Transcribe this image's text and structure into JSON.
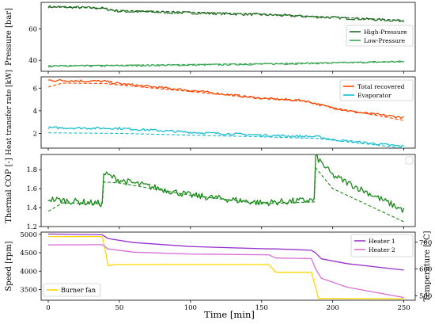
{
  "figure": {
    "xlabel": "Time [min]"
  },
  "chart_data": [
    {
      "type": "line",
      "ylabel": "Pressure [bar]",
      "xlim": [
        -5,
        258
      ],
      "ylim": [
        33,
        77
      ],
      "xticks": [
        0,
        50,
        100,
        150,
        200,
        250
      ],
      "yticks": [
        40,
        60
      ],
      "legend": "right",
      "series": [
        {
          "name": "High-Pressure",
          "color": "#1f6b1f",
          "style": "solid",
          "noise": 0.8,
          "points": [
            [
              0,
              74.2
            ],
            [
              20,
              73.8
            ],
            [
              38,
              73.3
            ],
            [
              42,
              72.5
            ],
            [
              50,
              71.3
            ],
            [
              100,
              70.3
            ],
            [
              150,
              69.2
            ],
            [
              200,
              67.3
            ],
            [
              250,
              65.2
            ]
          ]
        },
        {
          "name": "",
          "color": "#1f6b1f",
          "style": "dashed",
          "noise": 0,
          "points": [
            [
              0,
              74.0
            ],
            [
              38,
              73.3
            ],
            [
              48,
              72.0
            ],
            [
              100,
              70.8
            ],
            [
              150,
              69.5
            ],
            [
              200,
              67.6
            ],
            [
              250,
              65.6
            ]
          ]
        },
        {
          "name": "Low-Pressure",
          "color": "#3aa655",
          "style": "solid",
          "noise": 0.5,
          "points": [
            [
              0,
              36.2
            ],
            [
              50,
              36.6
            ],
            [
              100,
              37.0
            ],
            [
              150,
              37.6
            ],
            [
              200,
              38.3
            ],
            [
              250,
              39.3
            ]
          ]
        },
        {
          "name": "",
          "color": "#3aa655",
          "style": "dashed",
          "noise": 0,
          "points": [
            [
              0,
              36.6
            ],
            [
              50,
              36.9
            ],
            [
              100,
              37.4
            ],
            [
              150,
              37.9
            ],
            [
              200,
              38.5
            ],
            [
              250,
              38.9
            ]
          ]
        }
      ]
    },
    {
      "type": "line",
      "ylabel": "Heat transfer rate [kW]",
      "xlim": [
        -5,
        258
      ],
      "ylim": [
        0.7,
        7.0
      ],
      "xticks": [
        0,
        50,
        100,
        150,
        200,
        250
      ],
      "yticks": [
        2,
        4,
        6
      ],
      "legend": "top-right",
      "series": [
        {
          "name": "Total recovered",
          "color": "#ff4500",
          "style": "solid",
          "noise": 0.1,
          "points": [
            [
              0,
              6.7
            ],
            [
              40,
              6.6
            ],
            [
              50,
              6.4
            ],
            [
              100,
              5.8
            ],
            [
              150,
              5.1
            ],
            [
              180,
              4.9
            ],
            [
              195,
              4.4
            ],
            [
              215,
              3.9
            ],
            [
              250,
              3.4
            ]
          ]
        },
        {
          "name": "",
          "color": "#ff4500",
          "style": "dashed",
          "noise": 0,
          "points": [
            [
              0,
              6.1
            ],
            [
              10,
              6.45
            ],
            [
              40,
              6.4
            ],
            [
              100,
              5.7
            ],
            [
              150,
              5.1
            ],
            [
              180,
              4.85
            ],
            [
              200,
              4.3
            ],
            [
              250,
              3.15
            ]
          ]
        },
        {
          "name": "Evaporator",
          "color": "#17becf",
          "style": "solid",
          "noise": 0.1,
          "points": [
            [
              0,
              2.5
            ],
            [
              50,
              2.45
            ],
            [
              100,
              2.1
            ],
            [
              150,
              1.85
            ],
            [
              190,
              1.7
            ],
            [
              200,
              1.45
            ],
            [
              250,
              0.85
            ]
          ]
        },
        {
          "name": "",
          "color": "#17becf",
          "style": "dashed",
          "noise": 0,
          "points": [
            [
              0,
              2.05
            ],
            [
              50,
              2.0
            ],
            [
              100,
              1.85
            ],
            [
              150,
              1.7
            ],
            [
              190,
              1.55
            ],
            [
              200,
              1.4
            ],
            [
              250,
              0.7
            ]
          ]
        }
      ]
    },
    {
      "type": "line",
      "ylabel": "Thermal COP [-]",
      "xlim": [
        -5,
        258
      ],
      "ylim": [
        1.2,
        1.96
      ],
      "xticks": [
        0,
        50,
        100,
        150,
        200,
        250
      ],
      "yticks": [
        1.2,
        1.4,
        1.6,
        1.8
      ],
      "legend": "top-right",
      "series": [
        {
          "name": "",
          "color": "#1a8a1a",
          "style": "solid",
          "noise": 0.035,
          "points": [
            [
              0,
              1.49
            ],
            [
              38,
              1.44
            ],
            [
              39,
              1.76
            ],
            [
              50,
              1.69
            ],
            [
              100,
              1.53
            ],
            [
              150,
              1.45
            ],
            [
              187,
              1.48
            ],
            [
              188,
              1.94
            ],
            [
              200,
              1.74
            ],
            [
              250,
              1.37
            ]
          ]
        },
        {
          "name": "",
          "color": "#1a8a1a",
          "style": "dashed",
          "noise": 0,
          "points": [
            [
              0,
              1.36
            ],
            [
              10,
              1.45
            ],
            [
              38,
              1.44
            ],
            [
              39,
              1.67
            ],
            [
              50,
              1.66
            ],
            [
              100,
              1.53
            ],
            [
              150,
              1.44
            ],
            [
              187,
              1.46
            ],
            [
              188,
              1.82
            ],
            [
              200,
              1.6
            ],
            [
              250,
              1.25
            ]
          ]
        }
      ]
    },
    {
      "type": "line",
      "ylabel": "Speed [rpm]",
      "y2label": "Temperature [°C]",
      "xlim": [
        -5,
        258
      ],
      "ylim": [
        3210,
        5060
      ],
      "y2lim": [
        483,
        738
      ],
      "xticks": [
        0,
        50,
        100,
        150,
        200,
        250
      ],
      "yticks": [
        3500,
        4000,
        4500,
        5000
      ],
      "y2ticks": [
        500,
        600,
        700
      ],
      "legend": [
        "bottom-left",
        "top-right"
      ],
      "series": [
        {
          "name": "Burner fan",
          "axis": "left",
          "color": "#ffd700",
          "style": "solid",
          "noise": 0,
          "points": [
            [
              0,
              4940
            ],
            [
              38,
              4940
            ],
            [
              40,
              4600
            ],
            [
              42,
              4150
            ],
            [
              48,
              4180
            ],
            [
              155,
              4180
            ],
            [
              160,
              3970
            ],
            [
              185,
              3970
            ],
            [
              188,
              3550
            ],
            [
              190,
              3260
            ],
            [
              250,
              3250
            ]
          ]
        },
        {
          "name": "Heater 1",
          "axis": "right",
          "color": "#9932cc",
          "style": "solid",
          "noise": 0,
          "points": [
            [
              0,
              731
            ],
            [
              38,
              728
            ],
            [
              42,
              714
            ],
            [
              60,
              699
            ],
            [
              100,
              684
            ],
            [
              155,
              675
            ],
            [
              160,
              675
            ],
            [
              185,
              670
            ],
            [
              188,
              660
            ],
            [
              192,
              638
            ],
            [
              210,
              620
            ],
            [
              250,
              596
            ]
          ]
        },
        {
          "name": "Heater 2",
          "axis": "right",
          "color": "#da70d6",
          "style": "solid",
          "noise": 0,
          "points": [
            [
              0,
              690
            ],
            [
              38,
              691
            ],
            [
              42,
              675
            ],
            [
              60,
              663
            ],
            [
              100,
              656
            ],
            [
              155,
              653
            ],
            [
              160,
              641
            ],
            [
              185,
              639
            ],
            [
              188,
              600
            ],
            [
              192,
              565
            ],
            [
              210,
              532
            ],
            [
              250,
              493
            ]
          ]
        }
      ]
    }
  ]
}
